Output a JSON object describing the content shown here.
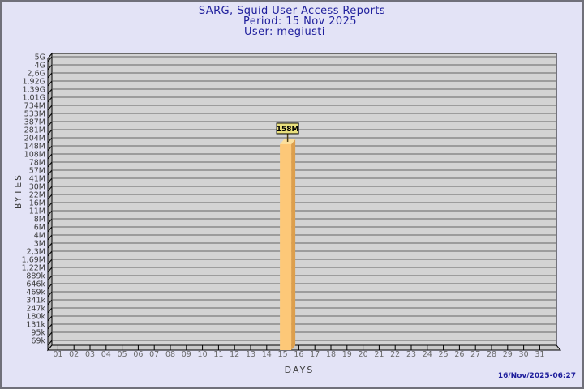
{
  "page": {
    "bg_color": "#e3e3f6",
    "border_color": "#70707a"
  },
  "header": {
    "title": "SARG, Squid User Access Reports",
    "period": "Period: 15 Nov 2025",
    "user": "User: megiusti"
  },
  "footer": {
    "generated_timestamp": "16/Nov/2025-06:27"
  },
  "chart_data": {
    "type": "bar",
    "title": "SARG, Squid User Access Reports",
    "subtitle": [
      "Period: 15 Nov 2025",
      "User: megiusti"
    ],
    "xlabel": "DAYS",
    "ylabel": "BYTES",
    "grid": "horizontal",
    "legend": "none",
    "x_axis": {
      "categories": [
        "01",
        "02",
        "03",
        "04",
        "05",
        "06",
        "07",
        "08",
        "09",
        "10",
        "11",
        "12",
        "13",
        "14",
        "15",
        "16",
        "17",
        "18",
        "19",
        "20",
        "21",
        "22",
        "23",
        "24",
        "25",
        "26",
        "27",
        "28",
        "29",
        "30",
        "31"
      ]
    },
    "y_axis": {
      "scale": "log",
      "tick_labels": [
        "5G",
        "4G",
        "2,6G",
        "1,92G",
        "1,39G",
        "1,01G",
        "734M",
        "533M",
        "387M",
        "281M",
        "204M",
        "148M",
        "108M",
        "78M",
        "57M",
        "41M",
        "30M",
        "22M",
        "16M",
        "11M",
        "8M",
        "6M",
        "4M",
        "3M",
        "2,3M",
        "1,69M",
        "1,22M",
        "889k",
        "646k",
        "469k",
        "341k",
        "247k",
        "180k",
        "131k",
        "95k",
        "69k"
      ],
      "range_bytes": [
        69000,
        5000000000
      ]
    },
    "bars": [
      {
        "day": "15",
        "label": "158M",
        "value_bytes": 158000000
      }
    ],
    "colors": {
      "plot_bg": "#d3d3d3",
      "wall": "#b8b8b8",
      "floor": "#c9c9c9",
      "grid": "#656565",
      "axis_line": "#000000",
      "axis_text": "#3c3c3c",
      "day_text": "#6a6a6a",
      "title_text": "#1e1e9c",
      "bar_front": "#fdc878",
      "bar_side": "#dd9f4c",
      "bar_top": "#fcdf9b",
      "bar_label_bg": "#e8df7d",
      "bar_label_text": "#000000"
    }
  }
}
